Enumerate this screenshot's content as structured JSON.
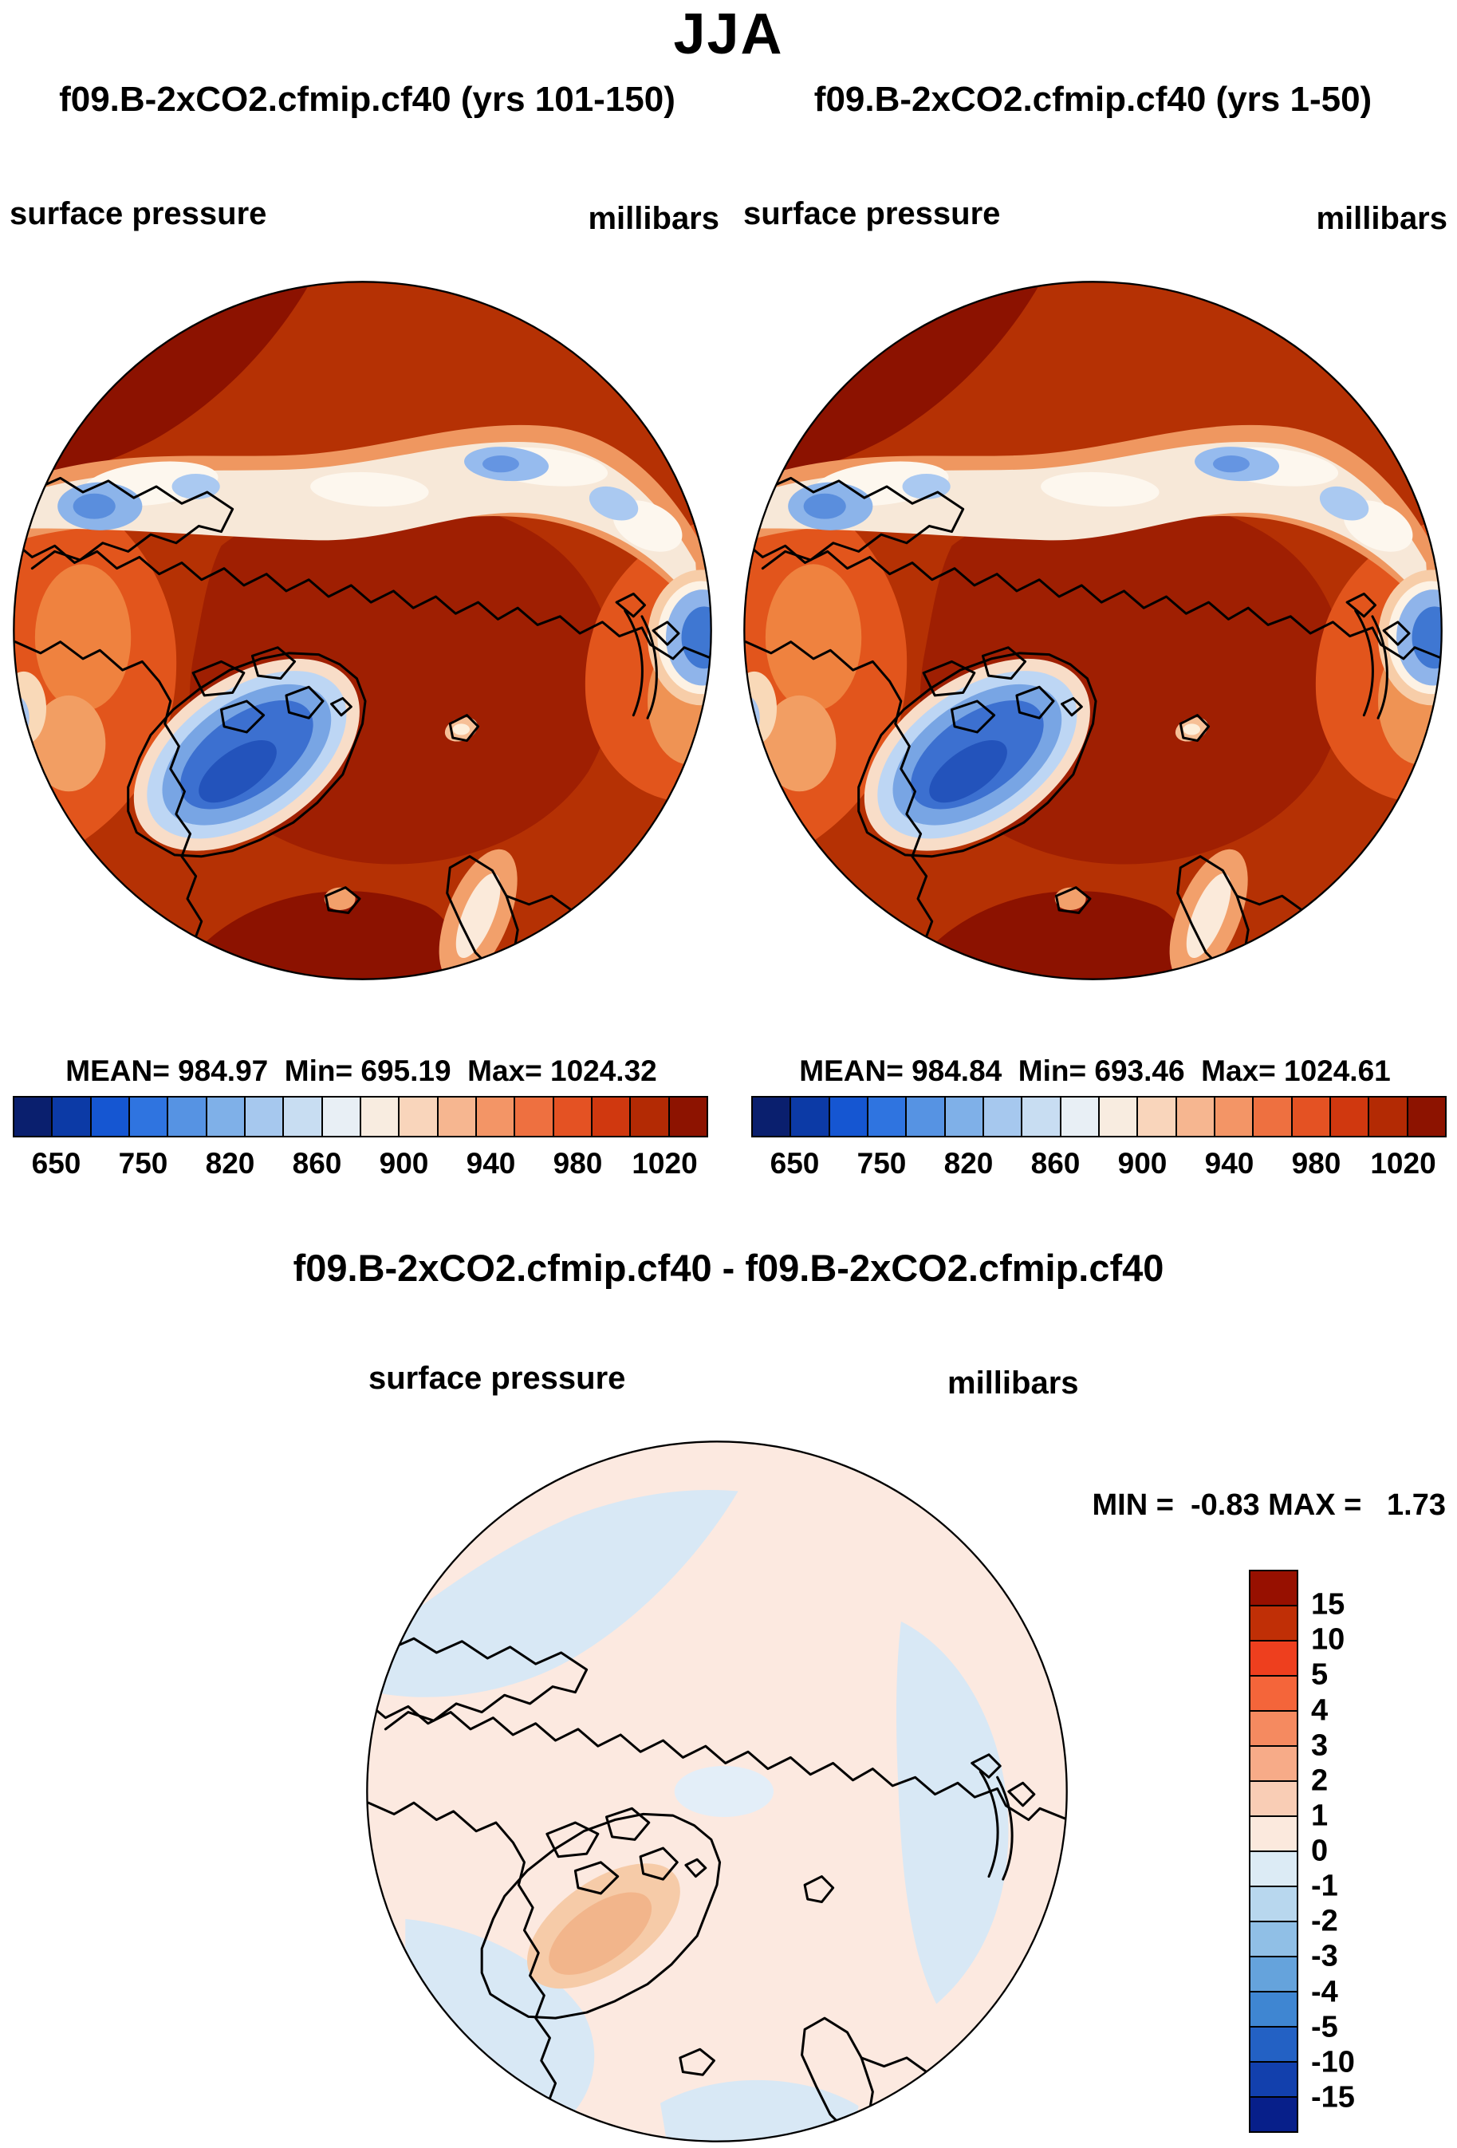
{
  "header": {
    "title": "JJA"
  },
  "panels": [
    {
      "title": "f09.B-2xCO2.cfmip.cf40 (yrs 101-150)",
      "variable": "surface pressure",
      "units": "millibars",
      "stats_line": "MEAN= 984.97  Min= 695.19  Max= 1024.32",
      "colorbar_ticks": [
        "650",
        "750",
        "820",
        "860",
        "900",
        "940",
        "980",
        "1020"
      ]
    },
    {
      "title": "f09.B-2xCO2.cfmip.cf40 (yrs 1-50)",
      "variable": "surface pressure",
      "units": "millibars",
      "stats_line": "MEAN= 984.84  Min= 693.46  Max= 1024.61",
      "colorbar_ticks": [
        "650",
        "750",
        "820",
        "860",
        "900",
        "940",
        "980",
        "1020"
      ]
    }
  ],
  "diff_panel": {
    "title": "f09.B-2xCO2.cfmip.cf40 - f09.B-2xCO2.cfmip.cf40",
    "variable": "surface pressure",
    "units": "millibars",
    "minmax_line": "MIN =  -0.83 MAX =   1.73",
    "colorbar_ticks": [
      "15",
      "10",
      "5",
      "4",
      "3",
      "2",
      "1",
      "0",
      "-1",
      "-2",
      "-3",
      "-4",
      "-5",
      "-10",
      "-15"
    ]
  },
  "colorbars": {
    "pressure": {
      "colors": [
        "#0a1f6e",
        "#0c3aa6",
        "#1556d2",
        "#2f74e0",
        "#5693e3",
        "#7fb0e8",
        "#a6c8ee",
        "#c8ddf2",
        "#e8eff5",
        "#f8ece0",
        "#f9d5bb",
        "#f6b690",
        "#f39566",
        "#ee7040",
        "#e45223",
        "#d0380f",
        "#b32a04",
        "#8d1300"
      ]
    },
    "diff": {
      "colors": [
        "#971000",
        "#c02f06",
        "#ee3f1e",
        "#f4653a",
        "#f58a60",
        "#f7ab88",
        "#f9cdb5",
        "#fbe9dd",
        "#dcebf5",
        "#b8d7ee",
        "#90bfe6",
        "#65a3dc",
        "#3f86d2",
        "#2361c4",
        "#1240ad",
        "#071f8a"
      ]
    }
  },
  "chart_data": [
    {
      "type": "heatmap",
      "title": "f09.B-2xCO2.cfmip.cf40 (yrs 101-150)",
      "subtitle": "JJA",
      "variable": "surface pressure",
      "units": "millibars",
      "projection": "north polar stereographic map",
      "mean": 984.97,
      "min": 695.19,
      "max": 1024.32,
      "colorbar_tick_labels": [
        650,
        750,
        820,
        860,
        900,
        940,
        980,
        1020
      ],
      "legend_position": "bottom"
    },
    {
      "type": "heatmap",
      "title": "f09.B-2xCO2.cfmip.cf40 (yrs 1-50)",
      "subtitle": "JJA",
      "variable": "surface pressure",
      "units": "millibars",
      "projection": "north polar stereographic map",
      "mean": 984.84,
      "min": 693.46,
      "max": 1024.61,
      "colorbar_tick_labels": [
        650,
        750,
        820,
        860,
        900,
        940,
        980,
        1020
      ],
      "legend_position": "bottom"
    },
    {
      "type": "heatmap",
      "title": "f09.B-2xCO2.cfmip.cf40 - f09.B-2xCO2.cfmip.cf40",
      "subtitle": "JJA difference map",
      "variable": "surface pressure",
      "units": "millibars",
      "projection": "north polar stereographic map",
      "min": -0.83,
      "max": 1.73,
      "colorbar_tick_labels": [
        15,
        10,
        5,
        4,
        3,
        2,
        1,
        0,
        -1,
        -2,
        -3,
        -4,
        -5,
        -10,
        -15
      ],
      "legend_position": "right"
    }
  ]
}
